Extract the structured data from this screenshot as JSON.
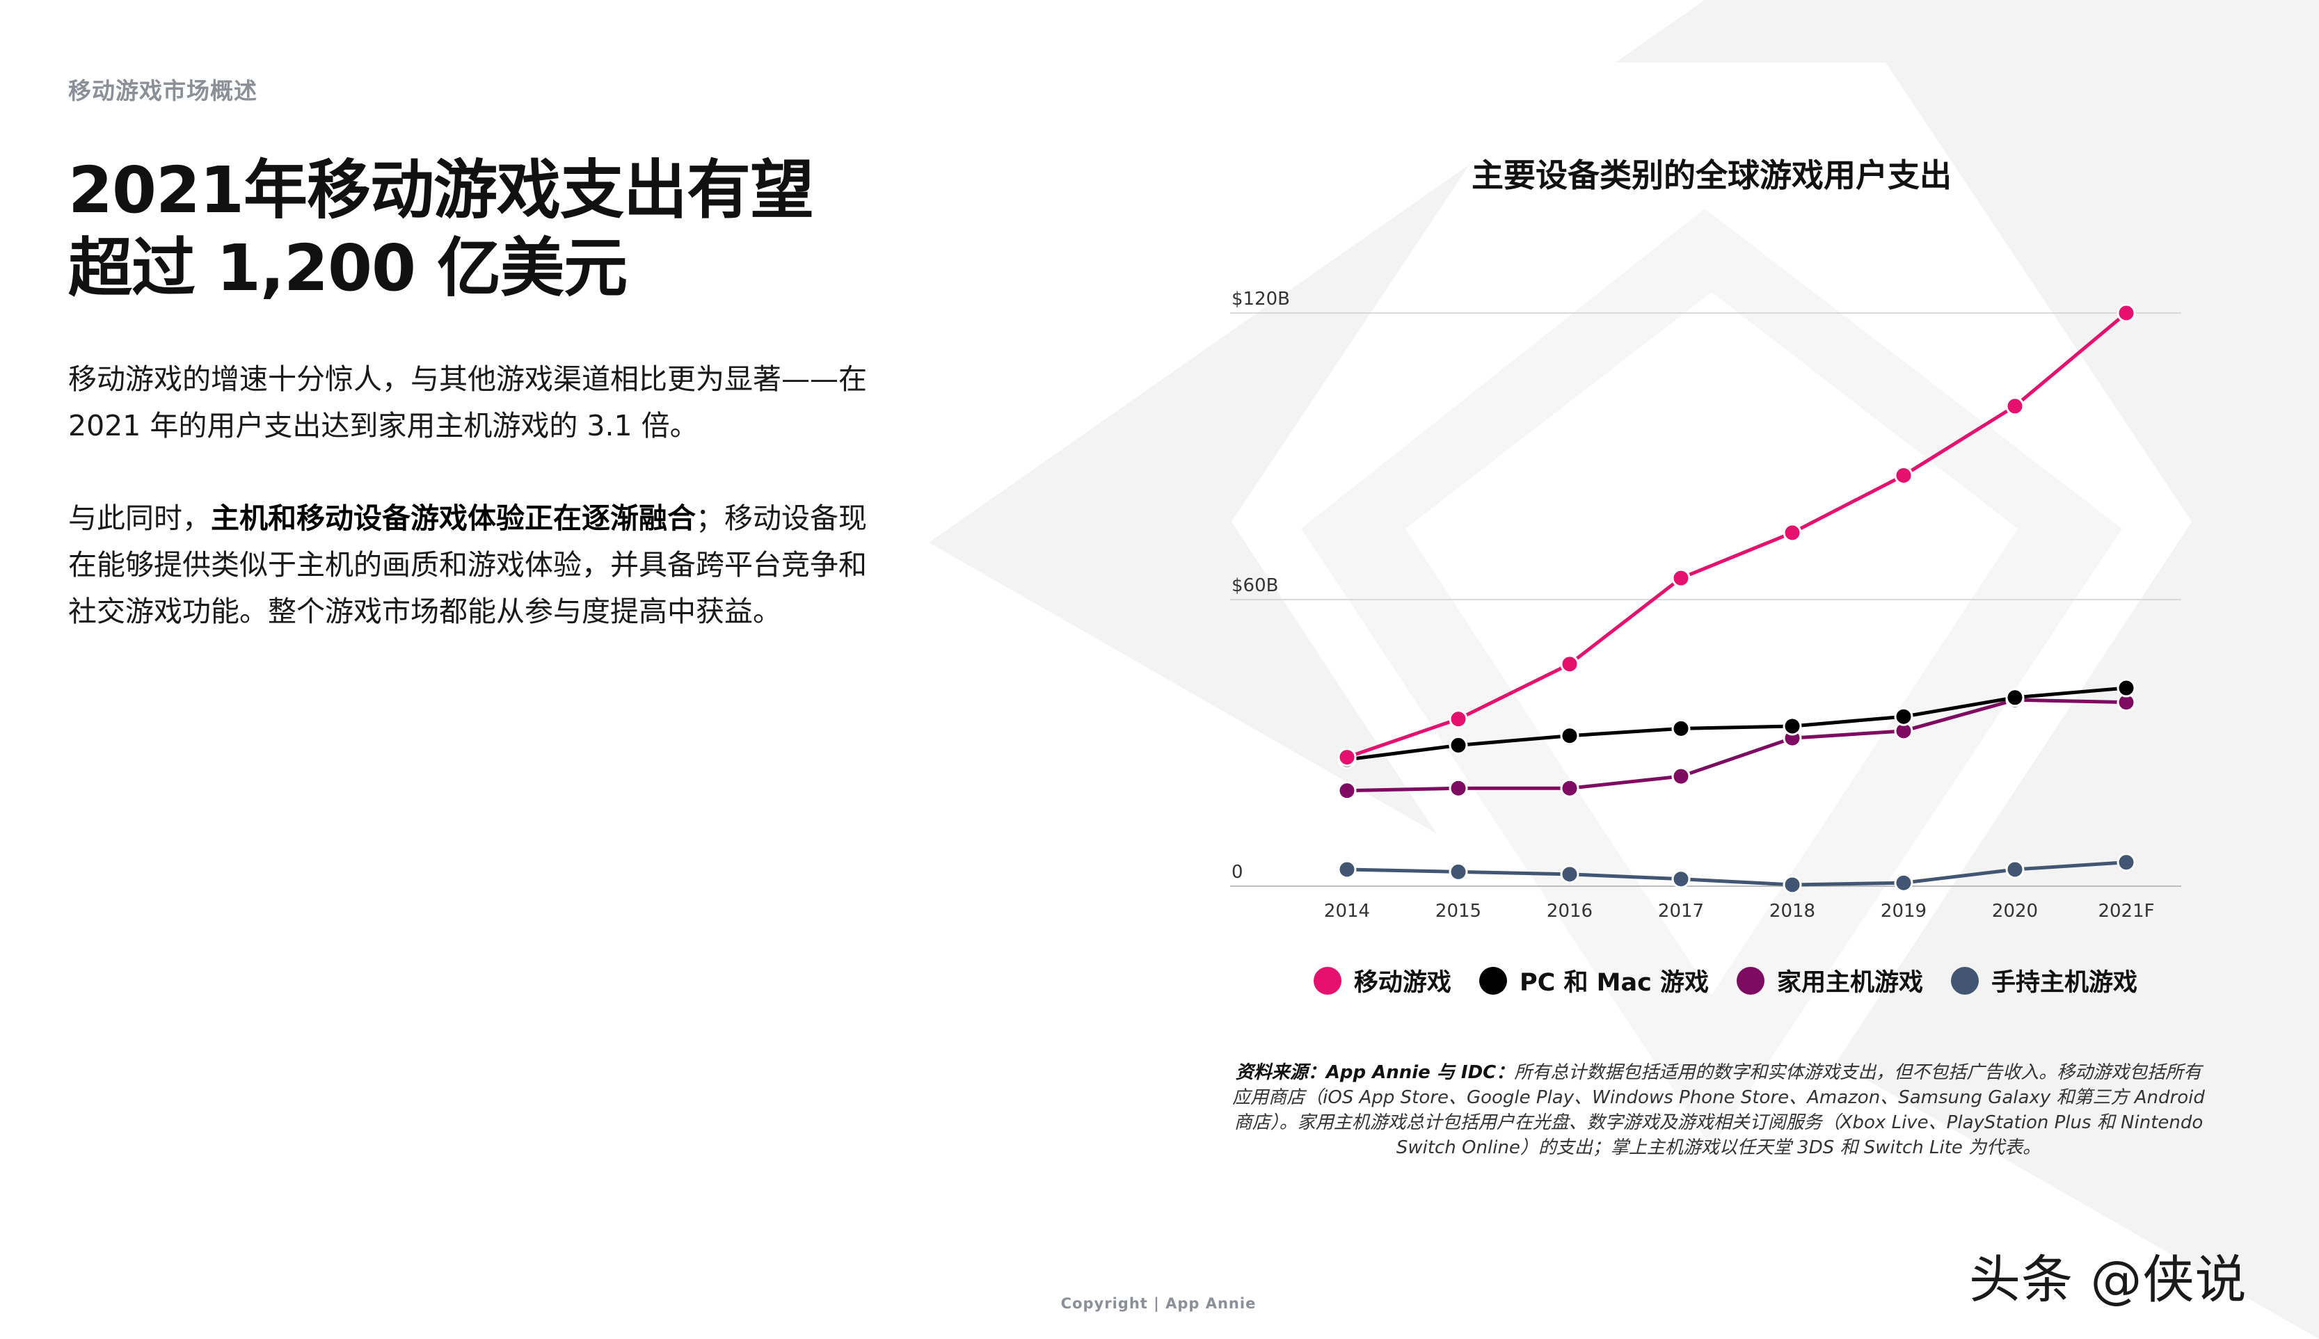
{
  "section_label": "移动游戏市场概述",
  "title_lines": [
    "2021年移动游戏支出有望",
    "超过 1,200 亿美元"
  ],
  "paragraph_1": "移动游戏的增速十分惊人，与其他游戏渠道相比更为显著——在 2021 年的用户支出达到家用主机游戏的 3.1 倍。",
  "paragraph_2": {
    "prefix": "与此同时，",
    "bold": "主机和移动设备游戏体验正在逐渐融合",
    "suffix": "；移动设备现在能够提供类似于主机的画质和游戏体验，并具备跨平台竞争和社交游戏功能。整个游戏市场都能从参与度提高中获益。"
  },
  "chart_data": {
    "type": "line",
    "title": "主要设备类别的全球游戏用户支出",
    "x": [
      "2014",
      "2015",
      "2016",
      "2017",
      "2018",
      "2019",
      "2020",
      "2021F"
    ],
    "y_tick_labels": [
      "0",
      "$60B",
      "$120B"
    ],
    "y_tick_values": [
      0,
      60,
      120
    ],
    "ylim": [
      0,
      120
    ],
    "grid": true,
    "legend_position": "bottom",
    "series": [
      {
        "name": "移动游戏",
        "color": "#E6106E",
        "values": [
          27,
          35,
          46.5,
          64.5,
          74,
          86,
          100.5,
          120
        ]
      },
      {
        "name": "PC 和 Mac 游戏",
        "color": "#000000",
        "values": [
          26.5,
          29.5,
          31.5,
          33,
          33.5,
          35.5,
          39.5,
          41.5
        ]
      },
      {
        "name": "家用主机游戏",
        "color": "#7E0A62",
        "values": [
          20,
          20.5,
          20.5,
          23,
          31,
          32.5,
          39,
          38.5
        ]
      },
      {
        "name": "手持主机游戏",
        "color": "#425673",
        "values": [
          3.5,
          3,
          2.5,
          1.5,
          0.3,
          0.7,
          3.5,
          5
        ]
      }
    ]
  },
  "source_note": {
    "label": "资料来源：App Annie 与 IDC：",
    "text": "所有总计数据包括适用的数字和实体游戏支出，但不包括广告收入。移动游戏包括所有应用商店（iOS App Store、Google Play、Windows Phone Store、Amazon、Samsung Galaxy 和第三方 Android 商店）。家用主机游戏总计包括用户在光盘、数字游戏及游戏相关订阅服务（Xbox Live、PlayStation Plus 和 Nintendo Switch Online）的支出；掌上主机游戏以任天堂 3DS 和 Switch Lite 为代表。"
  },
  "copyright": "Copyright | App Annie",
  "watermark": "头条 @侠说"
}
